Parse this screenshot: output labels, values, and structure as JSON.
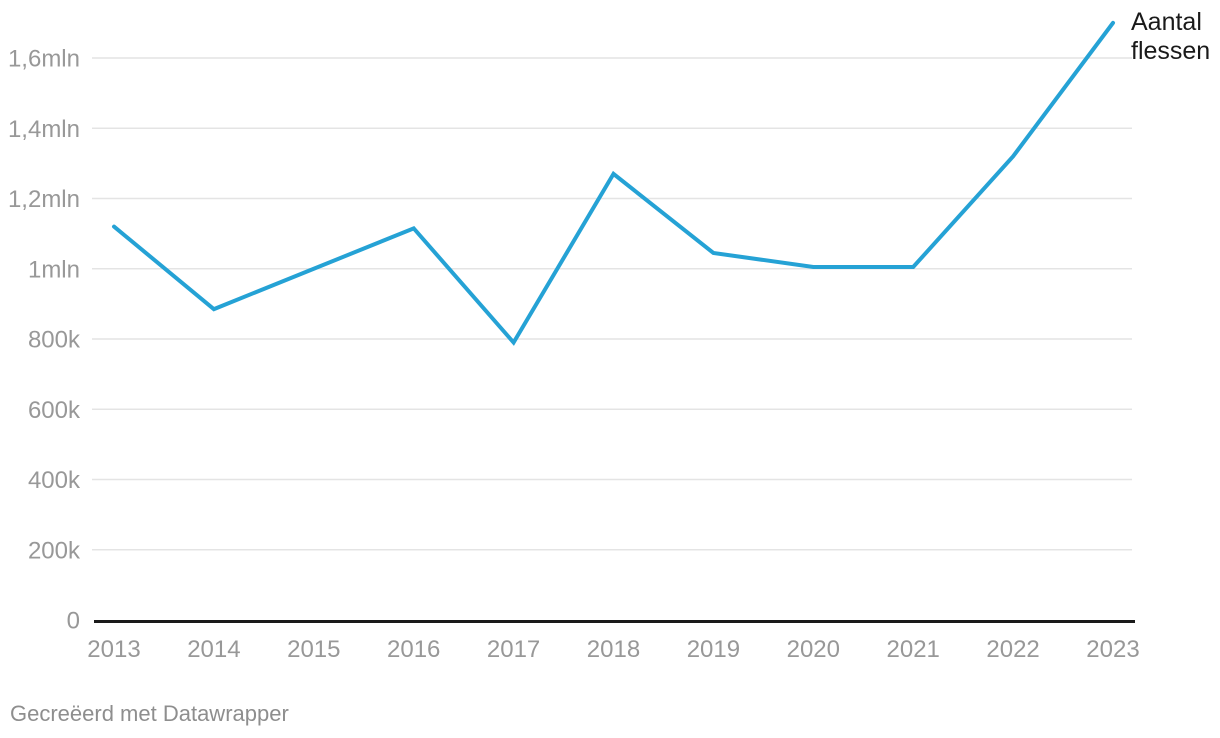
{
  "chart": {
    "line_label": "Aantal flessen",
    "attribution": "Gecreëerd met Datawrapper"
  },
  "colors": {
    "line": "#25a2d5",
    "axis": "#1a1a1a",
    "tick_label": "#989898",
    "gridline": "#e4e4e4",
    "direct_label": "#1a1a1a",
    "attribution": "#8e8e8e"
  },
  "chart_data": {
    "type": "line",
    "title": "",
    "xlabel": "",
    "ylabel": "",
    "x": [
      "2013",
      "2014",
      "2015",
      "2016",
      "2017",
      "2018",
      "2019",
      "2020",
      "2021",
      "2022",
      "2023"
    ],
    "series": [
      {
        "name": "Aantal flessen",
        "values": [
          1120000,
          885000,
          1000000,
          1115000,
          790000,
          1270000,
          1045000,
          1005000,
          1005000,
          1320000,
          1700000
        ]
      }
    ],
    "ylim": [
      0,
      1700000
    ],
    "yticks": [
      {
        "value": 0,
        "label": "0"
      },
      {
        "value": 200000,
        "label": "200k"
      },
      {
        "value": 400000,
        "label": "400k"
      },
      {
        "value": 600000,
        "label": "600k"
      },
      {
        "value": 800000,
        "label": "800k"
      },
      {
        "value": 1000000,
        "label": "1mln"
      },
      {
        "value": 1200000,
        "label": "1,2mln"
      },
      {
        "value": 1400000,
        "label": "1,4mln"
      },
      {
        "value": 1600000,
        "label": "1,6mln"
      }
    ],
    "grid": "horizontal",
    "legend_position": "direct-label-right-of-line-end",
    "line_color": "#25a2d5"
  }
}
